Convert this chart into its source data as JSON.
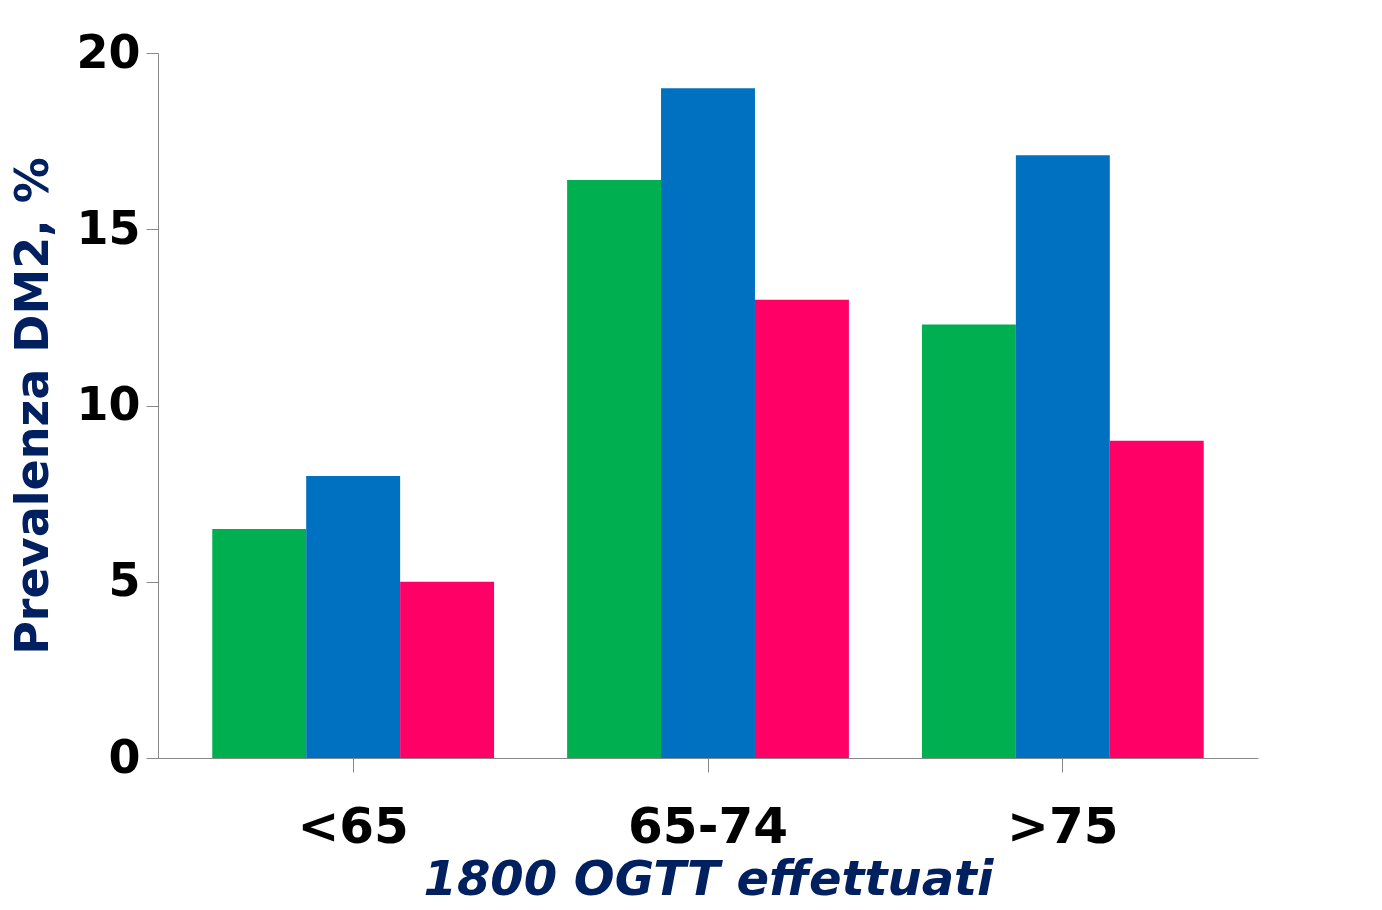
{
  "chart_data": {
    "type": "bar",
    "xlabel": "1800 OGTT effettuati",
    "ylabel": "Prevalenza DM2, %",
    "categories": [
      "<65",
      "65-74",
      ">75"
    ],
    "series": [
      {
        "color": "#00b050",
        "values": [
          6.5,
          16.4,
          12.3
        ]
      },
      {
        "color": "#0070c0",
        "values": [
          8.0,
          19.0,
          17.1
        ]
      },
      {
        "color": "#ff0066",
        "values": [
          5.0,
          13.0,
          9.0
        ]
      }
    ],
    "ylim": [
      0,
      20
    ],
    "yticks": [
      0,
      5,
      10,
      15,
      20
    ],
    "grid": false,
    "legend": false
  }
}
